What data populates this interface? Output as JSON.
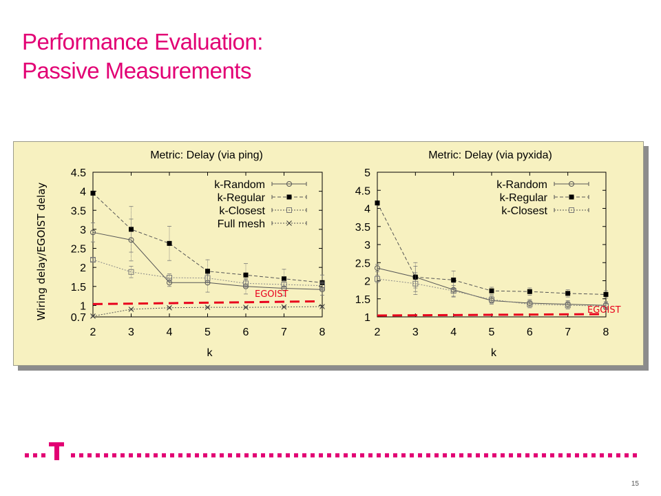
{
  "slide": {
    "title_line1": "Performance Evaluation:",
    "title_line2": "Passive Measurements",
    "page_number": "15",
    "ylabel": "Wiring delay/EGOIST delay",
    "egoist_label": "EGOIST",
    "brand_color": "#e20074",
    "brand_logo_text": "T"
  },
  "chart_data": [
    {
      "type": "line",
      "title": "Metric: Delay (via ping)",
      "xlabel": "k",
      "ylabel": "Wiring delay/EGOIST delay",
      "x": [
        2,
        3,
        4,
        5,
        6,
        7,
        8
      ],
      "xlim": [
        2,
        8
      ],
      "ylim": [
        0.7,
        4.5
      ],
      "yticks": [
        "0.7",
        "1",
        "1.5",
        "2",
        "2.5",
        "3",
        "3.5",
        "4",
        "4.5"
      ],
      "ytick_values": [
        0.7,
        1,
        1.5,
        2,
        2.5,
        3,
        3.5,
        4,
        4.5
      ],
      "xticks": [
        "2",
        "3",
        "4",
        "5",
        "6",
        "7",
        "8"
      ],
      "legend_position": "top-right",
      "series": [
        {
          "name": "k-Random",
          "marker": "circle-open",
          "dash": "solid",
          "values": [
            2.92,
            2.72,
            1.6,
            1.6,
            1.5,
            1.45,
            1.42
          ],
          "err": [
            0.25,
            0.55,
            0.1,
            0.25,
            0.2,
            0.2,
            0.15
          ]
        },
        {
          "name": "k-Regular",
          "marker": "square-filled",
          "dash": "dashed",
          "values": [
            3.95,
            3.0,
            2.63,
            1.9,
            1.8,
            1.7,
            1.6
          ],
          "err": [
            0.05,
            0.6,
            0.45,
            0.3,
            0.3,
            0.25,
            0.2
          ]
        },
        {
          "name": "k-Closest",
          "marker": "square-open",
          "dash": "dotted",
          "values": [
            2.2,
            1.88,
            1.73,
            1.72,
            1.58,
            1.55,
            1.52
          ],
          "err": [
            0.05,
            0.15,
            0.1,
            0.1,
            0.1,
            0.1,
            0.1
          ]
        },
        {
          "name": "Full mesh",
          "marker": "star",
          "dash": "dotted",
          "values": [
            0.72,
            0.9,
            0.94,
            0.95,
            0.95,
            0.96,
            0.97
          ],
          "err": [
            0.02,
            0.02,
            0.02,
            0.02,
            0.02,
            0.02,
            0.02
          ]
        }
      ],
      "reference_line": {
        "label": "EGOIST",
        "y": 1.0,
        "color": "#e8001c"
      }
    },
    {
      "type": "line",
      "title": "Metric: Delay (via pyxida)",
      "xlabel": "k",
      "ylabel": "",
      "x": [
        2,
        3,
        4,
        5,
        6,
        7,
        8
      ],
      "xlim": [
        2,
        8
      ],
      "ylim": [
        1,
        5
      ],
      "yticks": [
        "1",
        "1.5",
        "2",
        "2.5",
        "3",
        "3.5",
        "4",
        "4.5",
        "5"
      ],
      "ytick_values": [
        1,
        1.5,
        2,
        2.5,
        3,
        3.5,
        4,
        4.5,
        5
      ],
      "xticks": [
        "2",
        "3",
        "4",
        "5",
        "6",
        "7",
        "8"
      ],
      "legend_position": "top-right",
      "series": [
        {
          "name": "k-Random",
          "marker": "circle-open",
          "dash": "solid",
          "values": [
            2.35,
            2.1,
            1.75,
            1.45,
            1.38,
            1.35,
            1.32
          ],
          "err": [
            0.1,
            0.4,
            0.2,
            0.1,
            0.1,
            0.1,
            0.1
          ]
        },
        {
          "name": "k-Regular",
          "marker": "square-filled",
          "dash": "dashed",
          "values": [
            4.15,
            2.1,
            2.02,
            1.72,
            1.7,
            1.65,
            1.62
          ],
          "err": [
            0.05,
            0.3,
            0.25,
            0.1,
            0.1,
            0.1,
            0.1
          ]
        },
        {
          "name": "k-Closest",
          "marker": "square-open",
          "dash": "dotted",
          "values": [
            2.05,
            1.92,
            1.72,
            1.48,
            1.35,
            1.32,
            1.3
          ],
          "err": [
            0.1,
            0.3,
            0.15,
            0.1,
            0.1,
            0.1,
            0.1
          ]
        }
      ],
      "reference_line": {
        "label": "EGOIST",
        "y": 1.0,
        "color": "#e8001c"
      }
    }
  ]
}
